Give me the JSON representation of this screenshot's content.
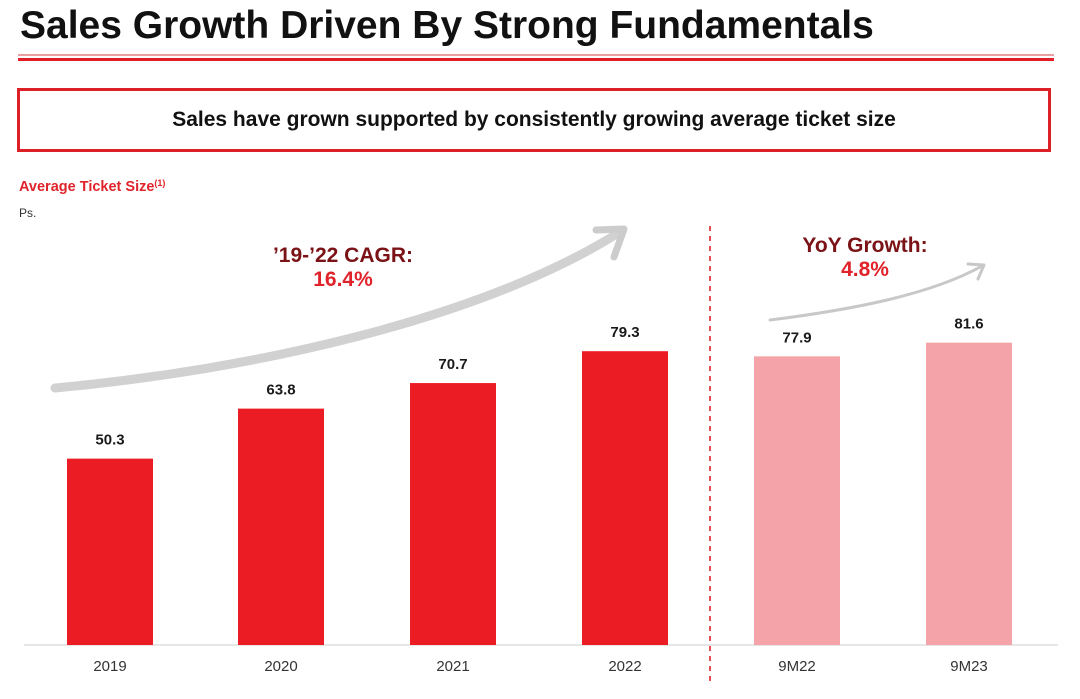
{
  "page": {
    "title": "Sales Growth Driven By Strong Fundamentals",
    "callout": "Sales have grown supported by consistently growing average ticket size"
  },
  "chart_data": {
    "type": "bar",
    "title": "Average Ticket Size",
    "title_footnote": "(1)",
    "unit_label": "Ps.",
    "categories": [
      "2019",
      "2020",
      "2021",
      "2022",
      "9M22",
      "9M23"
    ],
    "values": [
      50.3,
      63.8,
      70.7,
      79.3,
      77.9,
      81.6
    ],
    "value_labels": [
      "50.3",
      "63.8",
      "70.7",
      "79.3",
      "77.9",
      "81.6"
    ],
    "groups": [
      {
        "name": "annual",
        "categories": [
          "2019",
          "2020",
          "2021",
          "2022"
        ],
        "color": "#ec1c24"
      },
      {
        "name": "nine-month",
        "categories": [
          "9M22",
          "9M23"
        ],
        "color": "#f4a4a8"
      }
    ],
    "xlabel": "",
    "ylabel": "",
    "ylim": [
      0,
      80
    ],
    "grid": false,
    "legend": "none",
    "separator_after_category": "2022",
    "annotations": [
      {
        "id": "cagr",
        "line1": "’19-’22 CAGR:",
        "line2": "16.4%",
        "spans": [
          "2019",
          "2022"
        ]
      },
      {
        "id": "yoy",
        "line1": "YoY Growth:",
        "line2": "4.8%",
        "spans": [
          "9M22",
          "9M23"
        ]
      }
    ]
  },
  "colors": {
    "accent": "#e0232b",
    "dark_red": "#7a1216",
    "arrow": "#c8c8c8"
  }
}
